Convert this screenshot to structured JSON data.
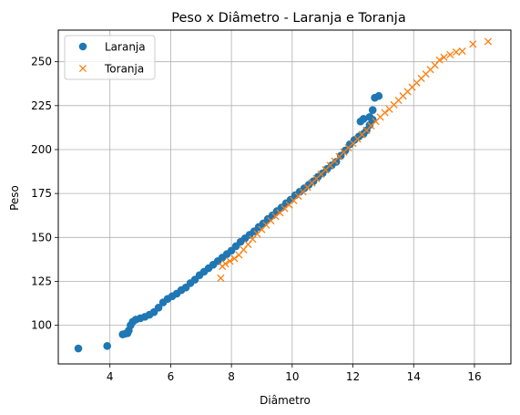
{
  "chart_data": {
    "type": "scatter",
    "title": "Peso x Diâmetro - Laranja e Toranja",
    "xlabel": "Diâmetro",
    "ylabel": "Peso",
    "xlim": [
      2.3,
      17.2
    ],
    "ylim": [
      78,
      268
    ],
    "xticks": [
      4,
      6,
      8,
      10,
      12,
      14,
      16
    ],
    "yticks": [
      100,
      125,
      150,
      175,
      200,
      225,
      250
    ],
    "grid": true,
    "legend_position": "top-left",
    "series": [
      {
        "name": "Laranja",
        "marker": "circle",
        "color": "#1f77b4",
        "points": [
          [
            2.96,
            86.8
          ],
          [
            3.91,
            88.2
          ],
          [
            4.42,
            94.8
          ],
          [
            4.5,
            95.2
          ],
          [
            4.58,
            95.5
          ],
          [
            4.62,
            97.0
          ],
          [
            4.68,
            100.0
          ],
          [
            4.75,
            102.0
          ],
          [
            4.85,
            103.2
          ],
          [
            5.0,
            104.0
          ],
          [
            5.15,
            104.8
          ],
          [
            5.3,
            106.0
          ],
          [
            5.45,
            107.5
          ],
          [
            5.6,
            110.0
          ],
          [
            5.75,
            113.0
          ],
          [
            5.9,
            115.0
          ],
          [
            6.05,
            116.5
          ],
          [
            6.2,
            118.0
          ],
          [
            6.35,
            120.0
          ],
          [
            6.5,
            121.5
          ],
          [
            6.65,
            124.0
          ],
          [
            6.8,
            126.0
          ],
          [
            6.95,
            128.5
          ],
          [
            7.1,
            130.5
          ],
          [
            7.25,
            132.5
          ],
          [
            7.4,
            134.5
          ],
          [
            7.55,
            136.5
          ],
          [
            7.7,
            138.5
          ],
          [
            7.85,
            140.5
          ],
          [
            8.0,
            142.5
          ],
          [
            8.15,
            145.0
          ],
          [
            8.3,
            147.5
          ],
          [
            8.45,
            149.5
          ],
          [
            8.6,
            151.5
          ],
          [
            8.75,
            153.5
          ],
          [
            8.9,
            156.0
          ],
          [
            9.05,
            158.0
          ],
          [
            9.2,
            160.5
          ],
          [
            9.35,
            162.5
          ],
          [
            9.5,
            165.0
          ],
          [
            9.65,
            167.0
          ],
          [
            9.8,
            169.5
          ],
          [
            9.95,
            171.5
          ],
          [
            10.1,
            174.0
          ],
          [
            10.25,
            176.0
          ],
          [
            10.4,
            178.0
          ],
          [
            10.55,
            180.0
          ],
          [
            10.7,
            182.0
          ],
          [
            10.85,
            184.5
          ],
          [
            11.0,
            186.5
          ],
          [
            11.15,
            189.0
          ],
          [
            11.3,
            191.0
          ],
          [
            11.45,
            193.0
          ],
          [
            11.6,
            196.5
          ],
          [
            11.75,
            199.5
          ],
          [
            11.9,
            203.0
          ],
          [
            12.05,
            205.5
          ],
          [
            12.2,
            207.5
          ],
          [
            12.35,
            209.0
          ],
          [
            12.45,
            211.0
          ],
          [
            12.55,
            214.0
          ],
          [
            12.65,
            217.0
          ],
          [
            12.25,
            216.0
          ],
          [
            12.35,
            217.5
          ],
          [
            12.55,
            218.5
          ],
          [
            12.65,
            222.5
          ],
          [
            12.72,
            229.5
          ],
          [
            12.85,
            230.5
          ]
        ]
      },
      {
        "name": "Toranja",
        "marker": "x",
        "color": "#ff7f0e",
        "points": [
          [
            7.65,
            126.8
          ],
          [
            7.7,
            133.5
          ],
          [
            7.8,
            135.0
          ],
          [
            7.95,
            136.5
          ],
          [
            8.1,
            138.0
          ],
          [
            8.25,
            140.0
          ],
          [
            8.4,
            143.0
          ],
          [
            8.55,
            146.0
          ],
          [
            8.7,
            149.0
          ],
          [
            8.85,
            152.0
          ],
          [
            9.0,
            154.5
          ],
          [
            9.15,
            157.0
          ],
          [
            9.3,
            159.5
          ],
          [
            9.45,
            162.0
          ],
          [
            9.6,
            164.0
          ],
          [
            9.75,
            166.5
          ],
          [
            9.9,
            168.5
          ],
          [
            10.05,
            171.0
          ],
          [
            10.2,
            173.5
          ],
          [
            10.35,
            176.0
          ],
          [
            10.5,
            178.5
          ],
          [
            10.65,
            181.0
          ],
          [
            10.8,
            183.5
          ],
          [
            10.95,
            186.0
          ],
          [
            11.1,
            188.5
          ],
          [
            11.25,
            191.0
          ],
          [
            11.4,
            193.5
          ],
          [
            11.55,
            196.0
          ],
          [
            11.7,
            198.5
          ],
          [
            11.85,
            201.0
          ],
          [
            12.0,
            203.5
          ],
          [
            12.15,
            206.0
          ],
          [
            12.3,
            208.5
          ],
          [
            12.45,
            211.0
          ],
          [
            12.6,
            213.5
          ],
          [
            12.75,
            216.0
          ],
          [
            12.9,
            218.5
          ],
          [
            13.05,
            221.0
          ],
          [
            13.2,
            223.0
          ],
          [
            13.35,
            225.5
          ],
          [
            13.5,
            228.0
          ],
          [
            13.65,
            230.5
          ],
          [
            13.8,
            233.0
          ],
          [
            13.95,
            235.5
          ],
          [
            14.1,
            238.0
          ],
          [
            14.25,
            240.5
          ],
          [
            14.4,
            243.0
          ],
          [
            14.55,
            245.5
          ],
          [
            14.7,
            248.0
          ],
          [
            14.85,
            251.0
          ],
          [
            15.0,
            252.5
          ],
          [
            15.2,
            254.0
          ],
          [
            15.4,
            255.5
          ],
          [
            15.6,
            256.0
          ],
          [
            15.95,
            260.0
          ],
          [
            16.45,
            261.5
          ]
        ]
      }
    ]
  }
}
